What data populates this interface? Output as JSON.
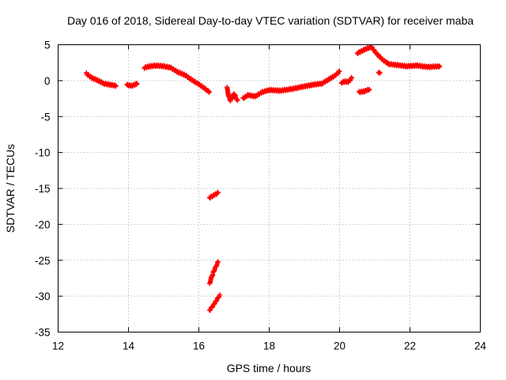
{
  "chart_data": {
    "type": "scatter",
    "title": "Day 016 of 2018, Sidereal Day-to-day VTEC variation (SDTVAR) for receiver maba",
    "xlabel": "GPS time / hours",
    "ylabel": "SDTVAR / TECUs",
    "xlim": [
      12,
      24
    ],
    "ylim": [
      -35,
      5
    ],
    "xticks": [
      "12",
      "14",
      "16",
      "18",
      "20",
      "22",
      "24"
    ],
    "yticks": [
      "5",
      "0",
      "-5",
      "-10",
      "-15",
      "-20",
      "-25",
      "-30",
      "-35"
    ],
    "grid": true,
    "marker": "+",
    "marker_color": "#ff0000",
    "series": [
      {
        "name": "SDTVAR",
        "segments": [
          [
            [
              12.8,
              1.0
            ],
            [
              12.95,
              0.4
            ],
            [
              13.1,
              0.1
            ],
            [
              13.3,
              -0.4
            ],
            [
              13.5,
              -0.6
            ],
            [
              13.65,
              -0.7
            ]
          ],
          [
            [
              13.95,
              -0.6
            ],
            [
              14.1,
              -0.7
            ],
            [
              14.25,
              -0.4
            ]
          ],
          [
            [
              14.45,
              1.8
            ],
            [
              14.6,
              2.0
            ],
            [
              14.8,
              2.1
            ],
            [
              15.0,
              2.0
            ],
            [
              15.2,
              1.8
            ],
            [
              15.4,
              1.2
            ],
            [
              15.6,
              0.8
            ],
            [
              15.8,
              0.1
            ],
            [
              16.0,
              -0.5
            ],
            [
              16.2,
              -1.2
            ],
            [
              16.3,
              -1.6
            ]
          ],
          [
            [
              16.8,
              -1.0
            ],
            [
              16.85,
              -2.2
            ],
            [
              16.9,
              -2.8
            ],
            [
              17.0,
              -1.8
            ],
            [
              17.1,
              -2.8
            ]
          ],
          [
            [
              17.25,
              -2.5
            ],
            [
              17.4,
              -2.0
            ],
            [
              17.6,
              -2.2
            ],
            [
              17.8,
              -1.6
            ],
            [
              18.0,
              -1.3
            ],
            [
              18.3,
              -1.4
            ],
            [
              18.6,
              -1.2
            ],
            [
              18.9,
              -0.9
            ],
            [
              19.2,
              -0.6
            ],
            [
              19.5,
              -0.4
            ],
            [
              19.7,
              0.2
            ],
            [
              19.9,
              0.8
            ],
            [
              20.0,
              1.3
            ]
          ],
          [
            [
              20.05,
              -0.3
            ],
            [
              20.15,
              -0.1
            ],
            [
              20.25,
              -0.2
            ],
            [
              20.35,
              0.4
            ]
          ],
          [
            [
              20.55,
              -1.6
            ],
            [
              20.7,
              -1.5
            ],
            [
              20.85,
              -1.2
            ]
          ],
          [
            [
              20.5,
              3.8
            ],
            [
              20.7,
              4.3
            ],
            [
              20.9,
              4.7
            ],
            [
              21.05,
              3.8
            ],
            [
              21.2,
              3.0
            ],
            [
              21.4,
              2.3
            ],
            [
              21.6,
              2.2
            ],
            [
              21.9,
              2.0
            ],
            [
              22.2,
              2.1
            ],
            [
              22.5,
              1.9
            ],
            [
              22.85,
              2.0
            ]
          ],
          [
            [
              21.1,
              1.2
            ],
            [
              21.15,
              1.0
            ]
          ],
          [
            [
              16.3,
              -16.3
            ],
            [
              16.45,
              -15.9
            ],
            [
              16.55,
              -15.6
            ]
          ],
          [
            [
              16.3,
              -28.3
            ],
            [
              16.4,
              -26.8
            ],
            [
              16.55,
              -25.2
            ]
          ],
          [
            [
              16.3,
              -32.0
            ],
            [
              16.45,
              -31.0
            ],
            [
              16.6,
              -29.8
            ]
          ]
        ]
      }
    ]
  }
}
